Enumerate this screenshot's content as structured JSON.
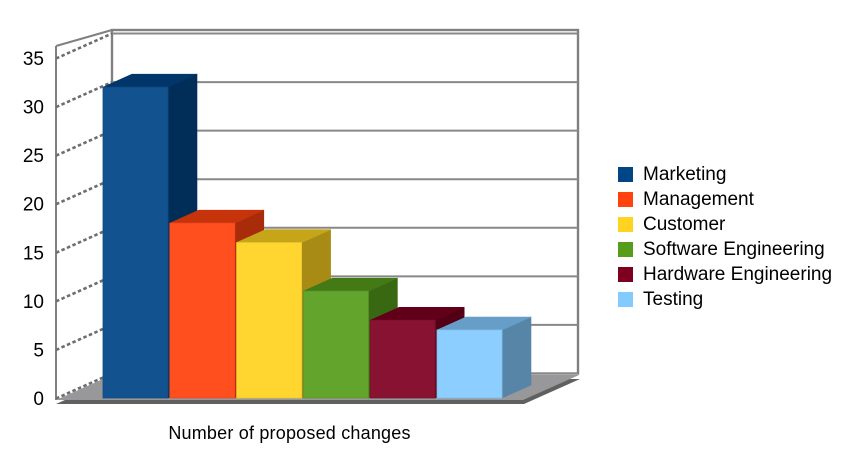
{
  "chart_data": {
    "type": "bar",
    "projection": "3d",
    "title": "",
    "xlabel": "Number of proposed changes",
    "ylabel": "",
    "ylim": [
      0,
      35
    ],
    "yticks": [
      0,
      5,
      10,
      15,
      20,
      25,
      30,
      35
    ],
    "gridlines": "horizontal",
    "legend_position": "right",
    "categories": [
      "Marketing",
      "Management",
      "Customer",
      "Software Engineering",
      "Hardware Engineering",
      "Testing"
    ],
    "series": [
      {
        "name": "Marketing",
        "value": 32,
        "color": "#004586"
      },
      {
        "name": "Management",
        "value": 18,
        "color": "#FF420E"
      },
      {
        "name": "Customer",
        "value": 16,
        "color": "#FFD320"
      },
      {
        "name": "Software Engineering",
        "value": 11,
        "color": "#579D1C"
      },
      {
        "name": "Hardware Engineering",
        "value": 8,
        "color": "#7E0021"
      },
      {
        "name": "Testing",
        "value": 7,
        "color": "#83CAFF"
      }
    ]
  },
  "colors": {
    "background": "#FFFFFF",
    "text": "#000000",
    "gridline": "#888888",
    "wall_border": "#808080",
    "floor_top": "#98989A",
    "floor_edge": "#606060"
  }
}
